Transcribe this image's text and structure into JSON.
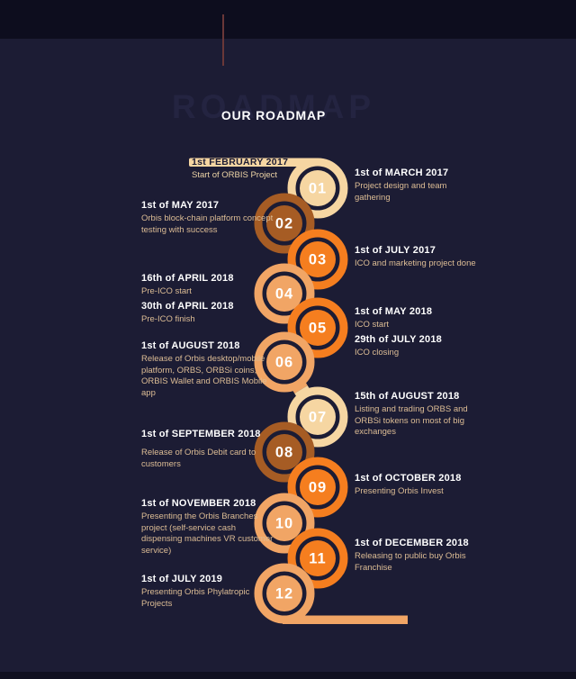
{
  "page": {
    "watermark": "ROADMAP",
    "title": "OUR ROADMAP"
  },
  "palette": {
    "background": "#1c1c34",
    "header_band": "#0d0d1e",
    "cream": "#f6d6a2",
    "brown": "#a65c24",
    "orange": "#f57e1f",
    "peach": "#f1a565",
    "heading_text": "#ffffff",
    "body_text": "#ddbd95",
    "dark_text": "#1b1b33"
  },
  "start": {
    "date": "1st FEBRUARY 2017",
    "desc": "Start of ORBIS Project"
  },
  "milestones": [
    {
      "number": "01",
      "color": "cream",
      "side": "right",
      "date": "1st of MARCH 2017",
      "desc": "Project design and team gathering"
    },
    {
      "number": "02",
      "color": "brown",
      "side": "left",
      "date": "1st of MAY 2017",
      "desc": "Orbis block-chain platform concept testing with success"
    },
    {
      "number": "03",
      "color": "orange",
      "side": "right",
      "date": "1st of JULY 2017",
      "desc": "ICO and marketing project done"
    },
    {
      "number": "04",
      "color": "peach",
      "side": "left",
      "date": "16th of APRIL 2018",
      "desc": "Pre-ICO start",
      "date2": "30th of APRIL 2018",
      "desc2": "Pre-ICO finish"
    },
    {
      "number": "05",
      "color": "orange",
      "side": "right",
      "date": "1st of MAY 2018",
      "desc": "ICO start",
      "date2": "29th of JULY 2018",
      "desc2": "ICO closing"
    },
    {
      "number": "06",
      "color": "peach",
      "side": "left",
      "date": "1st of AUGUST 2018",
      "desc": "Release of Orbis desktop/mobile platform, ORBS, ORBSi coins, ORBIS Wallet and ORBIS Mobile app"
    },
    {
      "number": "07",
      "color": "cream",
      "side": "right",
      "date": "15th of AUGUST 2018",
      "desc": "Listing and trading ORBS and ORBSi tokens on most of big exchanges"
    },
    {
      "number": "08",
      "color": "brown",
      "side": "left",
      "date": "1st of SEPTEMBER 2018",
      "desc": "Release of Orbis Debit card to customers"
    },
    {
      "number": "09",
      "color": "orange",
      "side": "right",
      "date": "1st of OCTOBER 2018",
      "desc": "Presenting Orbis Invest"
    },
    {
      "number": "10",
      "color": "peach",
      "side": "left",
      "date": "1st of NOVEMBER 2018",
      "desc": "Presenting the Orbis Branches project (self-service cash dispensing machines VR customer service)"
    },
    {
      "number": "11",
      "color": "orange",
      "side": "right",
      "date": "1st of DECEMBER 2018",
      "desc": "Releasing to public buy Orbis Franchise"
    },
    {
      "number": "12",
      "color": "peach",
      "side": "left",
      "date": "1st of JULY 2019",
      "desc": "Presenting Orbis Phylatropic Projects"
    }
  ]
}
